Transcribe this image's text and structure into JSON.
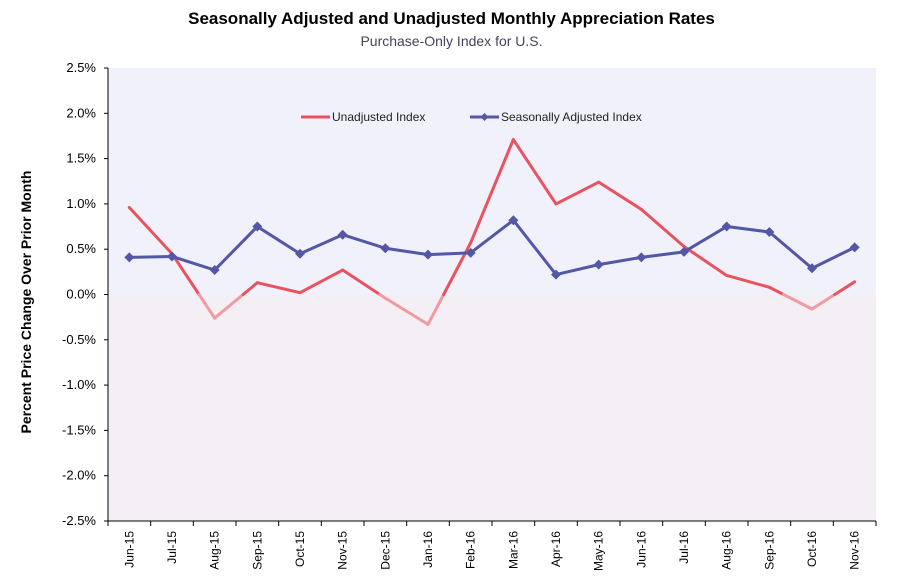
{
  "chart_data": {
    "type": "line",
    "title": "Seasonally Adjusted and Unadjusted Monthly Appreciation Rates",
    "subtitle": "Purchase-Only Index for U.S.",
    "ylabel": "Percent Price Change Over Prior Month",
    "xlabel": "",
    "ylim": [
      -2.5,
      2.5
    ],
    "yticks": [
      "2.5%",
      "2.0%",
      "1.5%",
      "1.0%",
      "0.5%",
      "0.0%",
      "-0.5%",
      "-1.0%",
      "-1.5%",
      "-2.0%",
      "-2.5%"
    ],
    "ytick_values": [
      2.5,
      2.0,
      1.5,
      1.0,
      0.5,
      0.0,
      -0.5,
      -1.0,
      -1.5,
      -2.0,
      -2.5
    ],
    "categories": [
      "Jun-15",
      "Jul-15",
      "Aug-15",
      "Sep-15",
      "Oct-15",
      "Nov-15",
      "Dec-15",
      "Jan-16",
      "Feb-16",
      "Mar-16",
      "Apr-16",
      "May-16",
      "Jun-16",
      "Jul-16",
      "Aug-16",
      "Sep-16",
      "Oct-16",
      "Nov-16"
    ],
    "series": [
      {
        "name": "Unadjusted Index",
        "color": "#e8535f",
        "values": [
          0.96,
          0.45,
          -0.26,
          0.13,
          0.02,
          0.27,
          -0.04,
          -0.33,
          0.57,
          1.71,
          1.0,
          1.24,
          0.94,
          0.53,
          0.21,
          0.08,
          -0.16,
          0.14
        ]
      },
      {
        "name": "Seasonally Adjusted Index",
        "color": "#5456a6",
        "values": [
          0.41,
          0.42,
          0.27,
          0.75,
          0.45,
          0.66,
          0.51,
          0.44,
          0.46,
          0.82,
          0.22,
          0.33,
          0.41,
          0.47,
          0.75,
          0.69,
          0.29,
          0.52
        ]
      }
    ],
    "legend_position": "top-center",
    "grid": false,
    "colors": {
      "positive_bg": "#f1f1fc",
      "negative_bg": "#f3eff4",
      "unadjusted_negative": "#f19aa0"
    }
  }
}
